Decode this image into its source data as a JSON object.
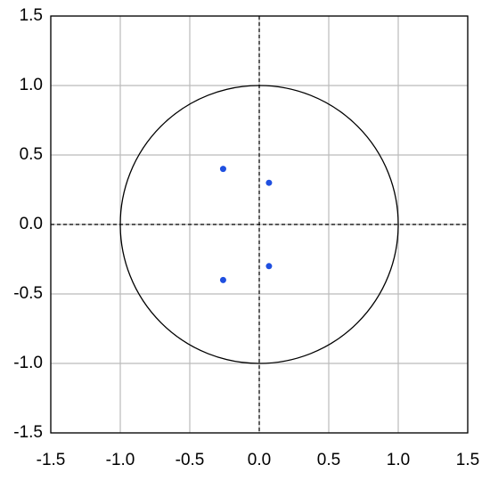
{
  "chart_data": {
    "type": "scatter",
    "series": [
      {
        "color": "#1f4fe0",
        "x": [
          -0.26,
          0.07,
          0.07,
          -0.26
        ],
        "values": [
          0.4,
          0.3,
          -0.3,
          -0.4
        ]
      }
    ],
    "xlim": [
      -1.5,
      1.5
    ],
    "ylim": [
      -1.5,
      1.5
    ],
    "xticks": [
      -1.5,
      {
        "value": -1,
        "label": "-1.0"
      },
      -0.5,
      {
        "value": 0,
        "label": "0.0"
      },
      0.5,
      {
        "value": 1,
        "label": "1.0"
      },
      1.5
    ],
    "yticks": [
      -1.5,
      {
        "value": -1,
        "label": "-1.0"
      },
      -0.5,
      {
        "value": 0,
        "label": "0.0"
      },
      0.5,
      {
        "value": 1,
        "label": "1.0"
      },
      1.5
    ],
    "grid": true,
    "zero_lines": true,
    "reference_circle_radius": 1
  }
}
